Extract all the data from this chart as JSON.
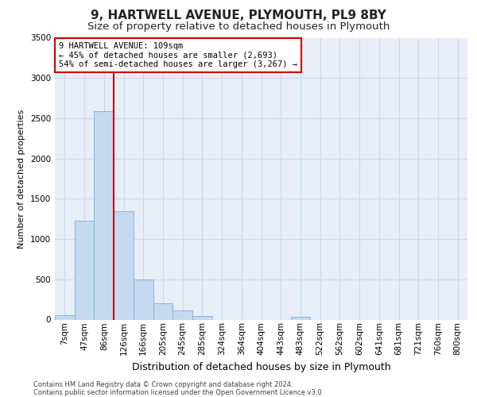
{
  "title_line1": "9, HARTWELL AVENUE, PLYMOUTH, PL9 8BY",
  "title_line2": "Size of property relative to detached houses in Plymouth",
  "xlabel": "Distribution of detached houses by size in Plymouth",
  "ylabel": "Number of detached properties",
  "footnote1": "Contains HM Land Registry data © Crown copyright and database right 2024.",
  "footnote2": "Contains public sector information licensed under the Open Government Licence v3.0.",
  "annotation_line1": "9 HARTWELL AVENUE: 109sqm",
  "annotation_line2": "← 45% of detached houses are smaller (2,693)",
  "annotation_line3": "54% of semi-detached houses are larger (3,267) →",
  "bar_labels": [
    "7sqm",
    "47sqm",
    "86sqm",
    "126sqm",
    "166sqm",
    "205sqm",
    "245sqm",
    "285sqm",
    "324sqm",
    "364sqm",
    "404sqm",
    "443sqm",
    "483sqm",
    "522sqm",
    "562sqm",
    "602sqm",
    "641sqm",
    "681sqm",
    "721sqm",
    "760sqm",
    "800sqm"
  ],
  "bar_values": [
    50,
    1230,
    2590,
    1350,
    500,
    200,
    110,
    40,
    0,
    0,
    0,
    0,
    35,
    0,
    0,
    0,
    0,
    0,
    0,
    0,
    0
  ],
  "bar_color": "#c5d9f0",
  "bar_edge_color": "#7baed4",
  "grid_color": "#c8d8ec",
  "background_color": "#e8eef8",
  "ylim": [
    0,
    3500
  ],
  "yticks": [
    0,
    500,
    1000,
    1500,
    2000,
    2500,
    3000,
    3500
  ],
  "red_line_x": 2.5,
  "annotation_box_color": "#ffffff",
  "annotation_box_edge": "#cc0000",
  "red_line_color": "#cc0000",
  "title1_fontsize": 11,
  "title2_fontsize": 9.5,
  "ylabel_fontsize": 8,
  "xlabel_fontsize": 9,
  "footnote_fontsize": 6,
  "tick_fontsize": 7.5,
  "annotation_fontsize": 7.5
}
